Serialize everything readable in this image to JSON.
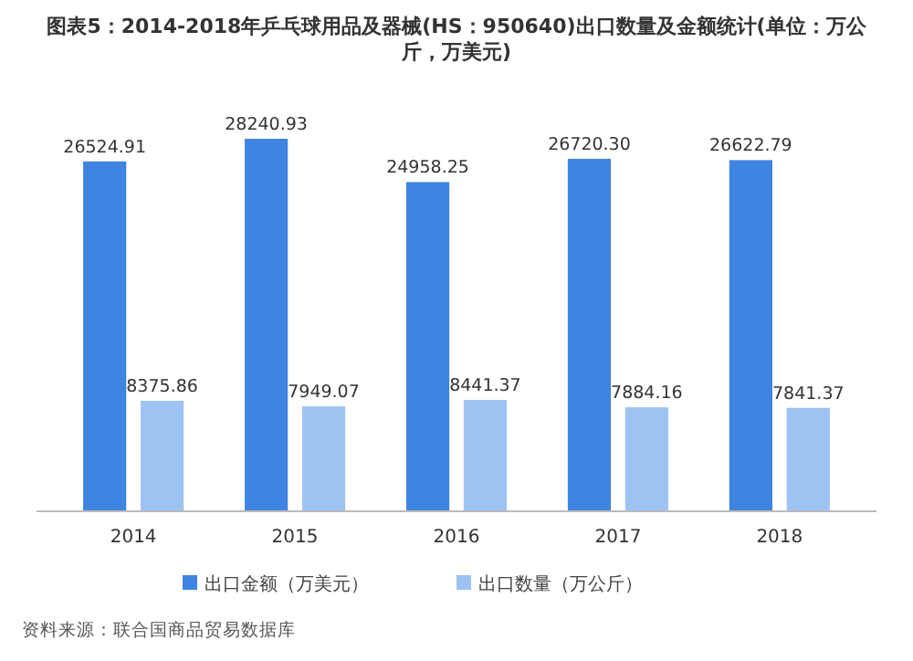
{
  "chart_data": {
    "type": "bar",
    "title": "图表5：2014-2018年乒乓球用品及器械(HS：950640)出口数量及金额统计(单位：万公斤，万美元)",
    "categories": [
      "2014",
      "2015",
      "2016",
      "2017",
      "2018"
    ],
    "series": [
      {
        "name": "出口金额（万美元）",
        "color": "#3f84e0",
        "values": [
          26524.91,
          28240.93,
          24958.25,
          26720.3,
          26622.79
        ],
        "value_labels": [
          "26524.91",
          "28240.93",
          "24958.25",
          "26720.30",
          "26622.79"
        ]
      },
      {
        "name": "出口数量（万公斤）",
        "color": "#9dc3f3",
        "values": [
          8375.86,
          7949.07,
          8441.37,
          7884.16,
          7841.37
        ],
        "value_labels": [
          "8375.86",
          "7949.07",
          "8441.37",
          "7884.16",
          "7841.37"
        ]
      }
    ],
    "tick_labels": "x",
    "legend": "bottom",
    "annotations": [
      "资料来源：联合国商品贸易数据库"
    ]
  }
}
